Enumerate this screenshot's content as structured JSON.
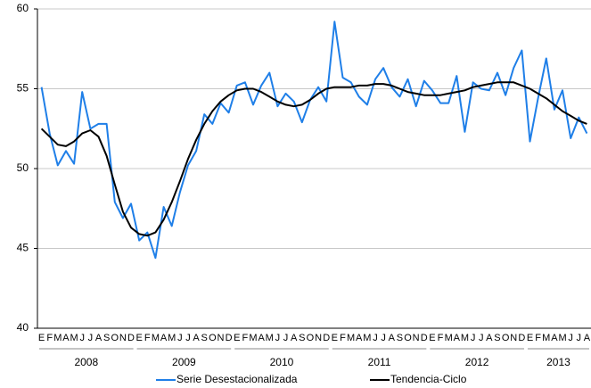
{
  "chart_data": {
    "type": "line",
    "categories": [
      "E",
      "F",
      "M",
      "A",
      "M",
      "J",
      "J",
      "A",
      "S",
      "O",
      "N",
      "D",
      "E",
      "F",
      "M",
      "A",
      "M",
      "J",
      "J",
      "A",
      "S",
      "O",
      "N",
      "D",
      "E",
      "F",
      "M",
      "A",
      "M",
      "J",
      "J",
      "A",
      "S",
      "O",
      "N",
      "D",
      "E",
      "F",
      "M",
      "A",
      "M",
      "J",
      "J",
      "A",
      "S",
      "O",
      "N",
      "D",
      "E",
      "F",
      "M",
      "A",
      "M",
      "J",
      "J",
      "A",
      "S",
      "O",
      "N",
      "D",
      "E",
      "F",
      "M",
      "A",
      "M",
      "J",
      "J",
      "A"
    ],
    "years": [
      "2008",
      "2009",
      "2010",
      "2011",
      "2012",
      "2013"
    ],
    "series": [
      {
        "name": "Serie Desestacionalizada",
        "color": "#1f7fe8",
        "values": [
          55.1,
          52.2,
          50.2,
          51.1,
          50.3,
          54.8,
          52.5,
          52.8,
          52.8,
          47.9,
          46.9,
          47.8,
          45.5,
          46.0,
          44.4,
          47.6,
          46.4,
          48.5,
          50.2,
          51.1,
          53.4,
          52.8,
          54.1,
          53.5,
          55.2,
          55.4,
          54.0,
          55.2,
          56.0,
          53.9,
          54.7,
          54.2,
          52.9,
          54.3,
          55.1,
          54.2,
          59.2,
          55.7,
          55.4,
          54.5,
          54.0,
          55.6,
          56.3,
          55.1,
          54.5,
          55.6,
          53.9,
          55.5,
          54.9,
          54.1,
          54.1,
          55.8,
          52.3,
          55.4,
          55.0,
          54.9,
          56.0,
          54.6,
          56.3,
          57.4,
          51.7,
          54.4,
          56.9,
          53.7,
          54.9,
          51.9,
          53.2,
          52.2
        ]
      },
      {
        "name": "Tendencia-Ciclo",
        "color": "#000000",
        "values": [
          52.5,
          52.0,
          51.5,
          51.4,
          51.7,
          52.2,
          52.4,
          52.0,
          50.8,
          49.0,
          47.3,
          46.3,
          45.9,
          45.8,
          46.0,
          46.8,
          47.9,
          49.2,
          50.6,
          51.8,
          52.8,
          53.6,
          54.2,
          54.6,
          54.9,
          55.0,
          55.0,
          54.8,
          54.5,
          54.2,
          54.0,
          53.9,
          54.0,
          54.3,
          54.7,
          55.0,
          55.1,
          55.1,
          55.1,
          55.2,
          55.2,
          55.3,
          55.3,
          55.2,
          55.0,
          54.8,
          54.7,
          54.6,
          54.6,
          54.6,
          54.7,
          54.8,
          54.9,
          55.1,
          55.2,
          55.3,
          55.4,
          55.4,
          55.4,
          55.2,
          55.0,
          54.7,
          54.4,
          54.0,
          53.6,
          53.3,
          53.0,
          52.8
        ]
      }
    ],
    "ylim": [
      40,
      60
    ],
    "yticks": [
      40,
      45,
      50,
      55,
      60
    ],
    "grid": true
  }
}
